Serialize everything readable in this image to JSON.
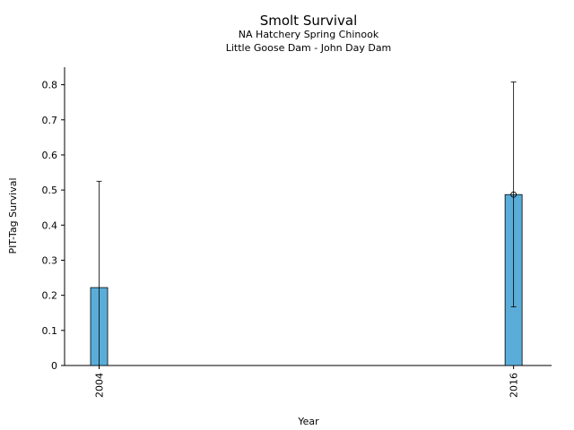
{
  "chart_data": {
    "type": "bar",
    "title": "Smolt Survival",
    "subtitle_lines": [
      "NA Hatchery Spring Chinook",
      "Little Goose Dam - John Day Dam"
    ],
    "xlabel": "Year",
    "ylabel": "PIT-Tag Survival",
    "ylim": [
      0,
      0.85
    ],
    "yticks": [
      "0",
      "0.1",
      "0.2",
      "0.3",
      "0.4",
      "0.5",
      "0.6",
      "0.7",
      "0.8"
    ],
    "xlim": [
      2003.0,
      2017.1
    ],
    "categories": [
      "2004",
      "2016"
    ],
    "x": [
      2004,
      2016
    ],
    "values": [
      0.222,
      0.487
    ],
    "error_low": [
      0.0,
      0.167
    ],
    "error_high": [
      0.525,
      0.808
    ],
    "bar_color": "#5aadd8",
    "grid": false,
    "legend": "none"
  }
}
